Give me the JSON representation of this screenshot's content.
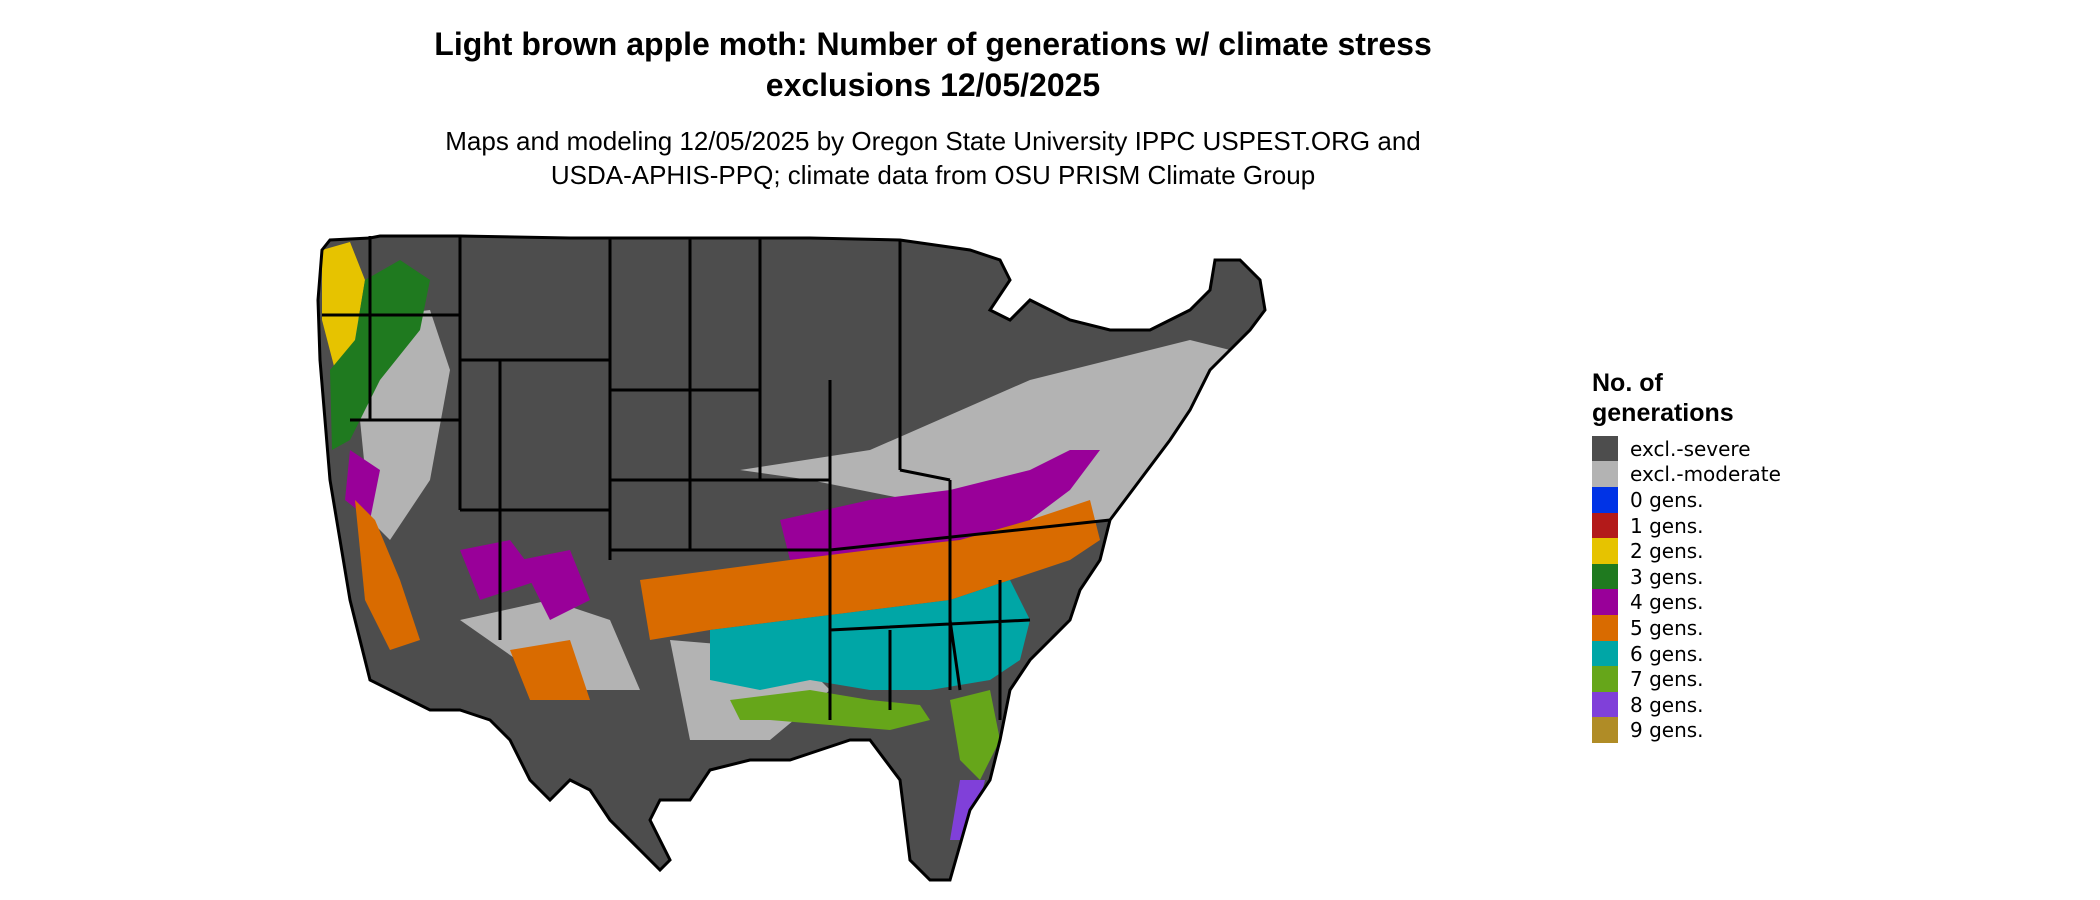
{
  "header": {
    "title_line1": "Light brown apple moth: Number of generations w/ climate stress",
    "title_line2": "exclusions 12/05/2025",
    "subtitle_line1": "Maps and modeling 12/05/2025 by Oregon State University IPPC USPEST.ORG and",
    "subtitle_line2": "USDA-APHIS-PPQ; climate data from OSU PRISM Climate Group"
  },
  "legend": {
    "title_line1": "No. of",
    "title_line2": "generations",
    "items": [
      {
        "label": "excl.-severe",
        "color": "#4d4d4d"
      },
      {
        "label": "excl.-moderate",
        "color": "#b3b3b3"
      },
      {
        "label": "0 gens.",
        "color": "#0033e6"
      },
      {
        "label": "1 gens.",
        "color": "#b31a1a"
      },
      {
        "label": "2 gens.",
        "color": "#e6c300"
      },
      {
        "label": "3 gens.",
        "color": "#1f7a1f"
      },
      {
        "label": "4 gens.",
        "color": "#990099"
      },
      {
        "label": "5 gens.",
        "color": "#d96b00"
      },
      {
        "label": "6 gens.",
        "color": "#00a6a6"
      },
      {
        "label": "7 gens.",
        "color": "#66a61a"
      },
      {
        "label": "8 gens.",
        "color": "#8040d9"
      },
      {
        "label": "9 gens.",
        "color": "#b08c26"
      }
    ]
  },
  "map": {
    "region": "conterminous United States",
    "border_color": "#000000"
  }
}
